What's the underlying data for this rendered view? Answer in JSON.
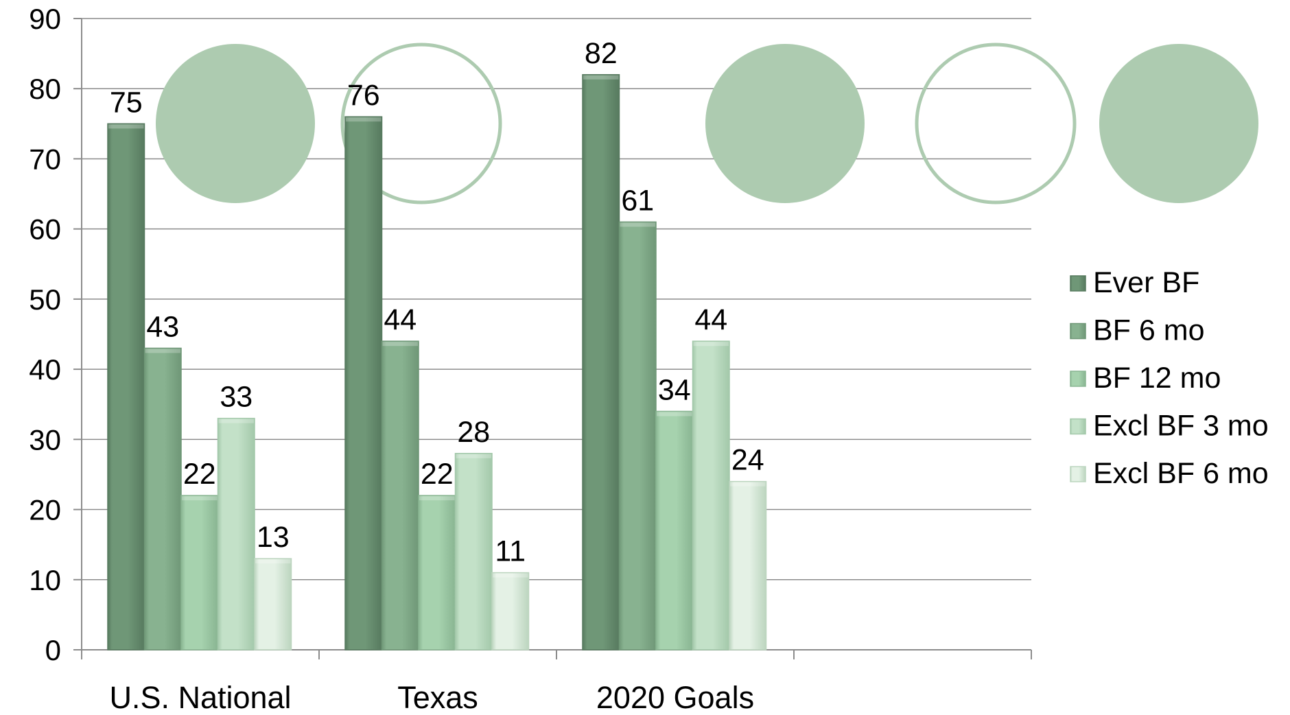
{
  "chart_data": {
    "type": "bar",
    "categories": [
      "U.S. National",
      "Texas",
      "2020 Goals",
      ""
    ],
    "series": [
      {
        "name": "Ever BF",
        "values": [
          75,
          76,
          82,
          null
        ]
      },
      {
        "name": "BF 6 mo",
        "values": [
          43,
          44,
          61,
          null
        ]
      },
      {
        "name": "BF 12 mo",
        "values": [
          22,
          22,
          34,
          null
        ]
      },
      {
        "name": "Excl BF 3 mo",
        "values": [
          33,
          28,
          44,
          null
        ]
      },
      {
        "name": "Excl BF 6 mo",
        "values": [
          13,
          11,
          24,
          null
        ]
      }
    ],
    "data_labels": [
      [
        "75",
        "76",
        "82",
        ""
      ],
      [
        "43",
        "44",
        "61",
        ""
      ],
      [
        "22",
        "22",
        "34",
        ""
      ],
      [
        "33",
        "28",
        "44",
        ""
      ],
      [
        "13",
        "11",
        "24",
        ""
      ]
    ],
    "yticks": [
      "0",
      "10",
      "20",
      "30",
      "40",
      "50",
      "60",
      "70",
      "80",
      "90"
    ],
    "ylim": [
      0,
      90
    ],
    "grid": true,
    "legend_position": "right",
    "title": "",
    "xlabel": "",
    "ylabel": "",
    "colors": {
      "series_fills": [
        "#6f9777",
        "#88b290",
        "#a6d2ae",
        "#c3e1c8",
        "#e4f1e5"
      ],
      "series_edges": [
        "#577a5f",
        "#6f9777",
        "#89b592",
        "#a3c8aa",
        "#bcd5bf"
      ],
      "gridline": "#8c8c8c",
      "axis": "#8c8c8c",
      "decor_circle": "#adcbb0"
    }
  },
  "decorations": {
    "circles": [
      {
        "style": "filled",
        "color": "#adcbb0"
      },
      {
        "style": "outline",
        "color": "#adcbb0"
      },
      {
        "style": "filled",
        "color": "#adcbb0"
      },
      {
        "style": "outline",
        "color": "#adcbb0"
      },
      {
        "style": "filled",
        "color": "#adcbb0"
      }
    ]
  }
}
